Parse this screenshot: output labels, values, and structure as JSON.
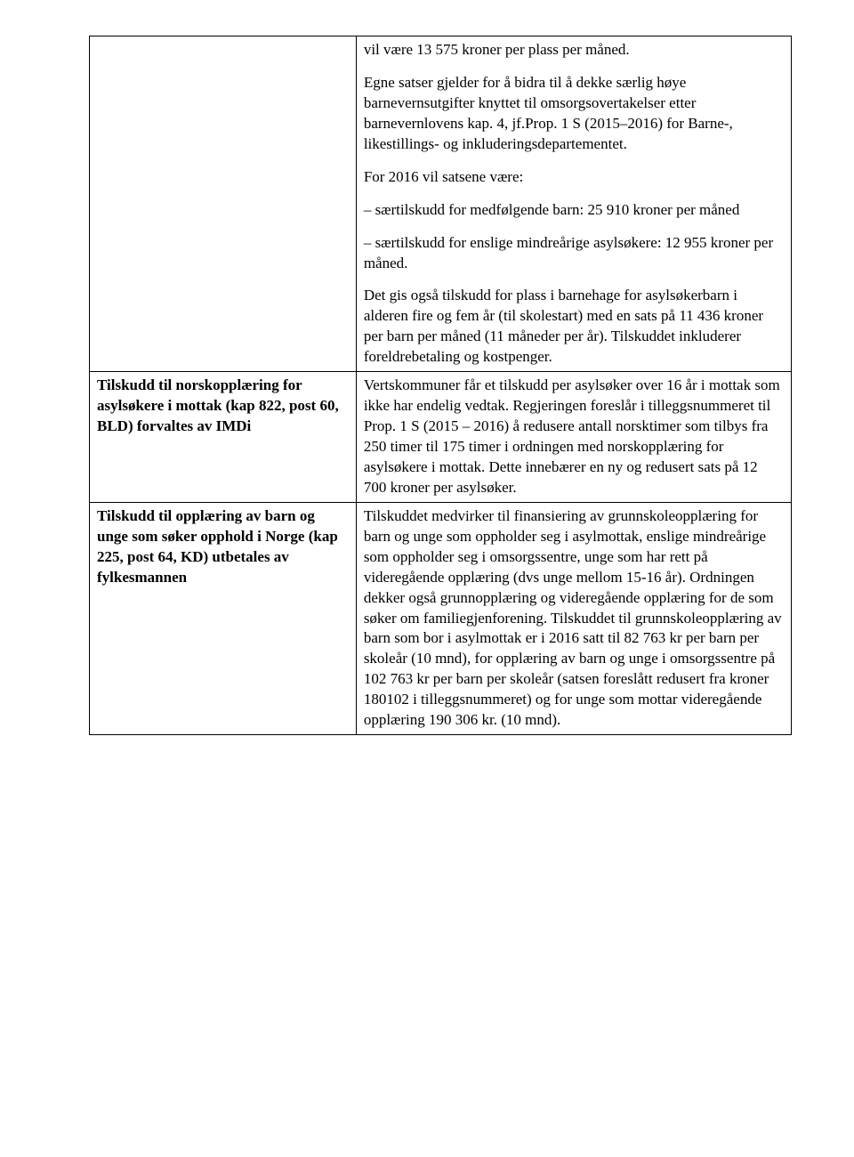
{
  "row1": {
    "left": "",
    "right": {
      "p1": "vil være 13 575 kroner per plass per måned.",
      "p2": "Egne satser gjelder for å bidra til å dekke særlig høye barnevernsutgifter knyttet til omsorgsovertakelser etter barnevernlovens kap. 4, jf.Prop. 1 S (2015–2016) for Barne-, likestillings- og inkluderingsdepartementet.",
      "p3": "For 2016 vil satsene være:",
      "p4": "– særtilskudd for medfølgende barn: 25 910 kroner per måned",
      "p5": "– særtilskudd for enslige mindreårige asylsøkere: 12 955 kroner per måned.",
      "p6": "Det gis også tilskudd for plass i barnehage for asylsøkerbarn i alderen fire og fem år (til skolestart) med en sats på 11 436 kroner per barn per måned (11 måneder per år). Tilskuddet inkluderer foreldrebetaling og kostpenger."
    }
  },
  "row2": {
    "left": "Tilskudd til norskopplæring for asylsøkere i mottak (kap 822, post 60, BLD) forvaltes av IMDi",
    "right": "Vertskommuner får et tilskudd per asylsøker over 16 år i mottak som ikke har endelig vedtak. Regjeringen foreslår i tilleggsnummeret til Prop. 1 S (2015 – 2016) å redusere antall norsktimer som tilbys fra 250 timer til 175 timer i ordningen med norskopplæring for asylsøkere i mottak. Dette innebærer en ny og redusert  sats på 12 700 kroner per asylsøker."
  },
  "row3": {
    "left": "Tilskudd til opplæring av barn og unge som søker opphold i Norge (kap 225, post 64, KD) utbetales av fylkesmannen",
    "right": "Tilskuddet medvirker til finansiering av grunnskoleopplæring for barn og unge som oppholder seg i asylmottak, enslige mindreårige som oppholder seg i omsorgssentre, unge som har rett på videregående opplæring (dvs unge mellom 15-16 år). Ordningen dekker også grunnopplæring og videregående opplæring for de som søker om familiegjenforening. Tilskuddet til grunnskoleopplæring av barn som bor i asylmottak er i 2016 satt til 82 763 kr per barn per skoleår (10 mnd), for opplæring av barn og unge i omsorgssentre på 102 763 kr per barn per skoleår (satsen foreslått redusert fra kroner 180102 i tilleggsnummeret) og for unge som mottar videregående opplæring 190 306 kr. (10 mnd)."
  }
}
